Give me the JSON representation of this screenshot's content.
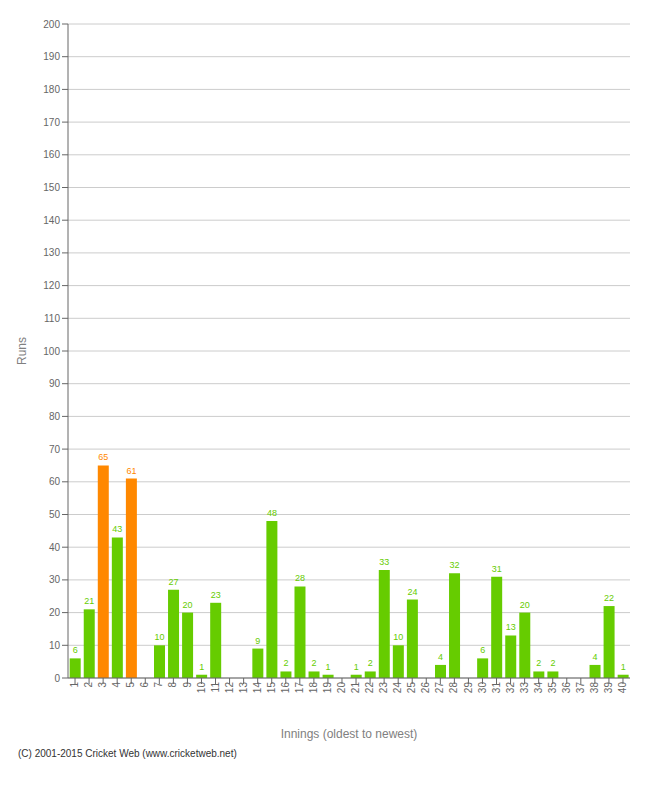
{
  "chart_data": {
    "type": "bar",
    "categories": [
      "1",
      "2",
      "3",
      "4",
      "5",
      "6",
      "7",
      "8",
      "9",
      "10",
      "11",
      "12",
      "13",
      "14",
      "15",
      "16",
      "17",
      "18",
      "19",
      "20",
      "21",
      "22",
      "23",
      "24",
      "25",
      "26",
      "27",
      "28",
      "29",
      "30",
      "31",
      "32",
      "33",
      "34",
      "35",
      "36",
      "37",
      "38",
      "39",
      "40"
    ],
    "values": [
      6,
      21,
      65,
      43,
      61,
      0,
      10,
      27,
      20,
      1,
      23,
      0,
      0,
      9,
      48,
      2,
      28,
      2,
      1,
      0,
      1,
      2,
      33,
      10,
      24,
      0,
      4,
      32,
      0,
      6,
      31,
      13,
      20,
      2,
      2,
      0,
      0,
      4,
      22,
      1
    ],
    "colors": [
      "#66cc00",
      "#66cc00",
      "#ff8800",
      "#66cc00",
      "#ff8800",
      "#66cc00",
      "#66cc00",
      "#66cc00",
      "#66cc00",
      "#66cc00",
      "#66cc00",
      "#66cc00",
      "#66cc00",
      "#66cc00",
      "#66cc00",
      "#66cc00",
      "#66cc00",
      "#66cc00",
      "#66cc00",
      "#66cc00",
      "#66cc00",
      "#66cc00",
      "#66cc00",
      "#66cc00",
      "#66cc00",
      "#66cc00",
      "#66cc00",
      "#66cc00",
      "#66cc00",
      "#66cc00",
      "#66cc00",
      "#66cc00",
      "#66cc00",
      "#66cc00",
      "#66cc00",
      "#66cc00",
      "#66cc00",
      "#66cc00",
      "#66cc00",
      "#66cc00"
    ],
    "xlabel": "Innings (oldest to newest)",
    "ylabel": "Runs",
    "ylim": [
      0,
      200
    ],
    "yticks": [
      0,
      10,
      20,
      30,
      40,
      50,
      60,
      70,
      80,
      90,
      100,
      110,
      120,
      130,
      140,
      150,
      160,
      170,
      180,
      190,
      200
    ],
    "grid": true,
    "data_labels": true,
    "annotations": [
      "(C) 2001-2015 Cricket Web (www.cricketweb.net)"
    ]
  }
}
